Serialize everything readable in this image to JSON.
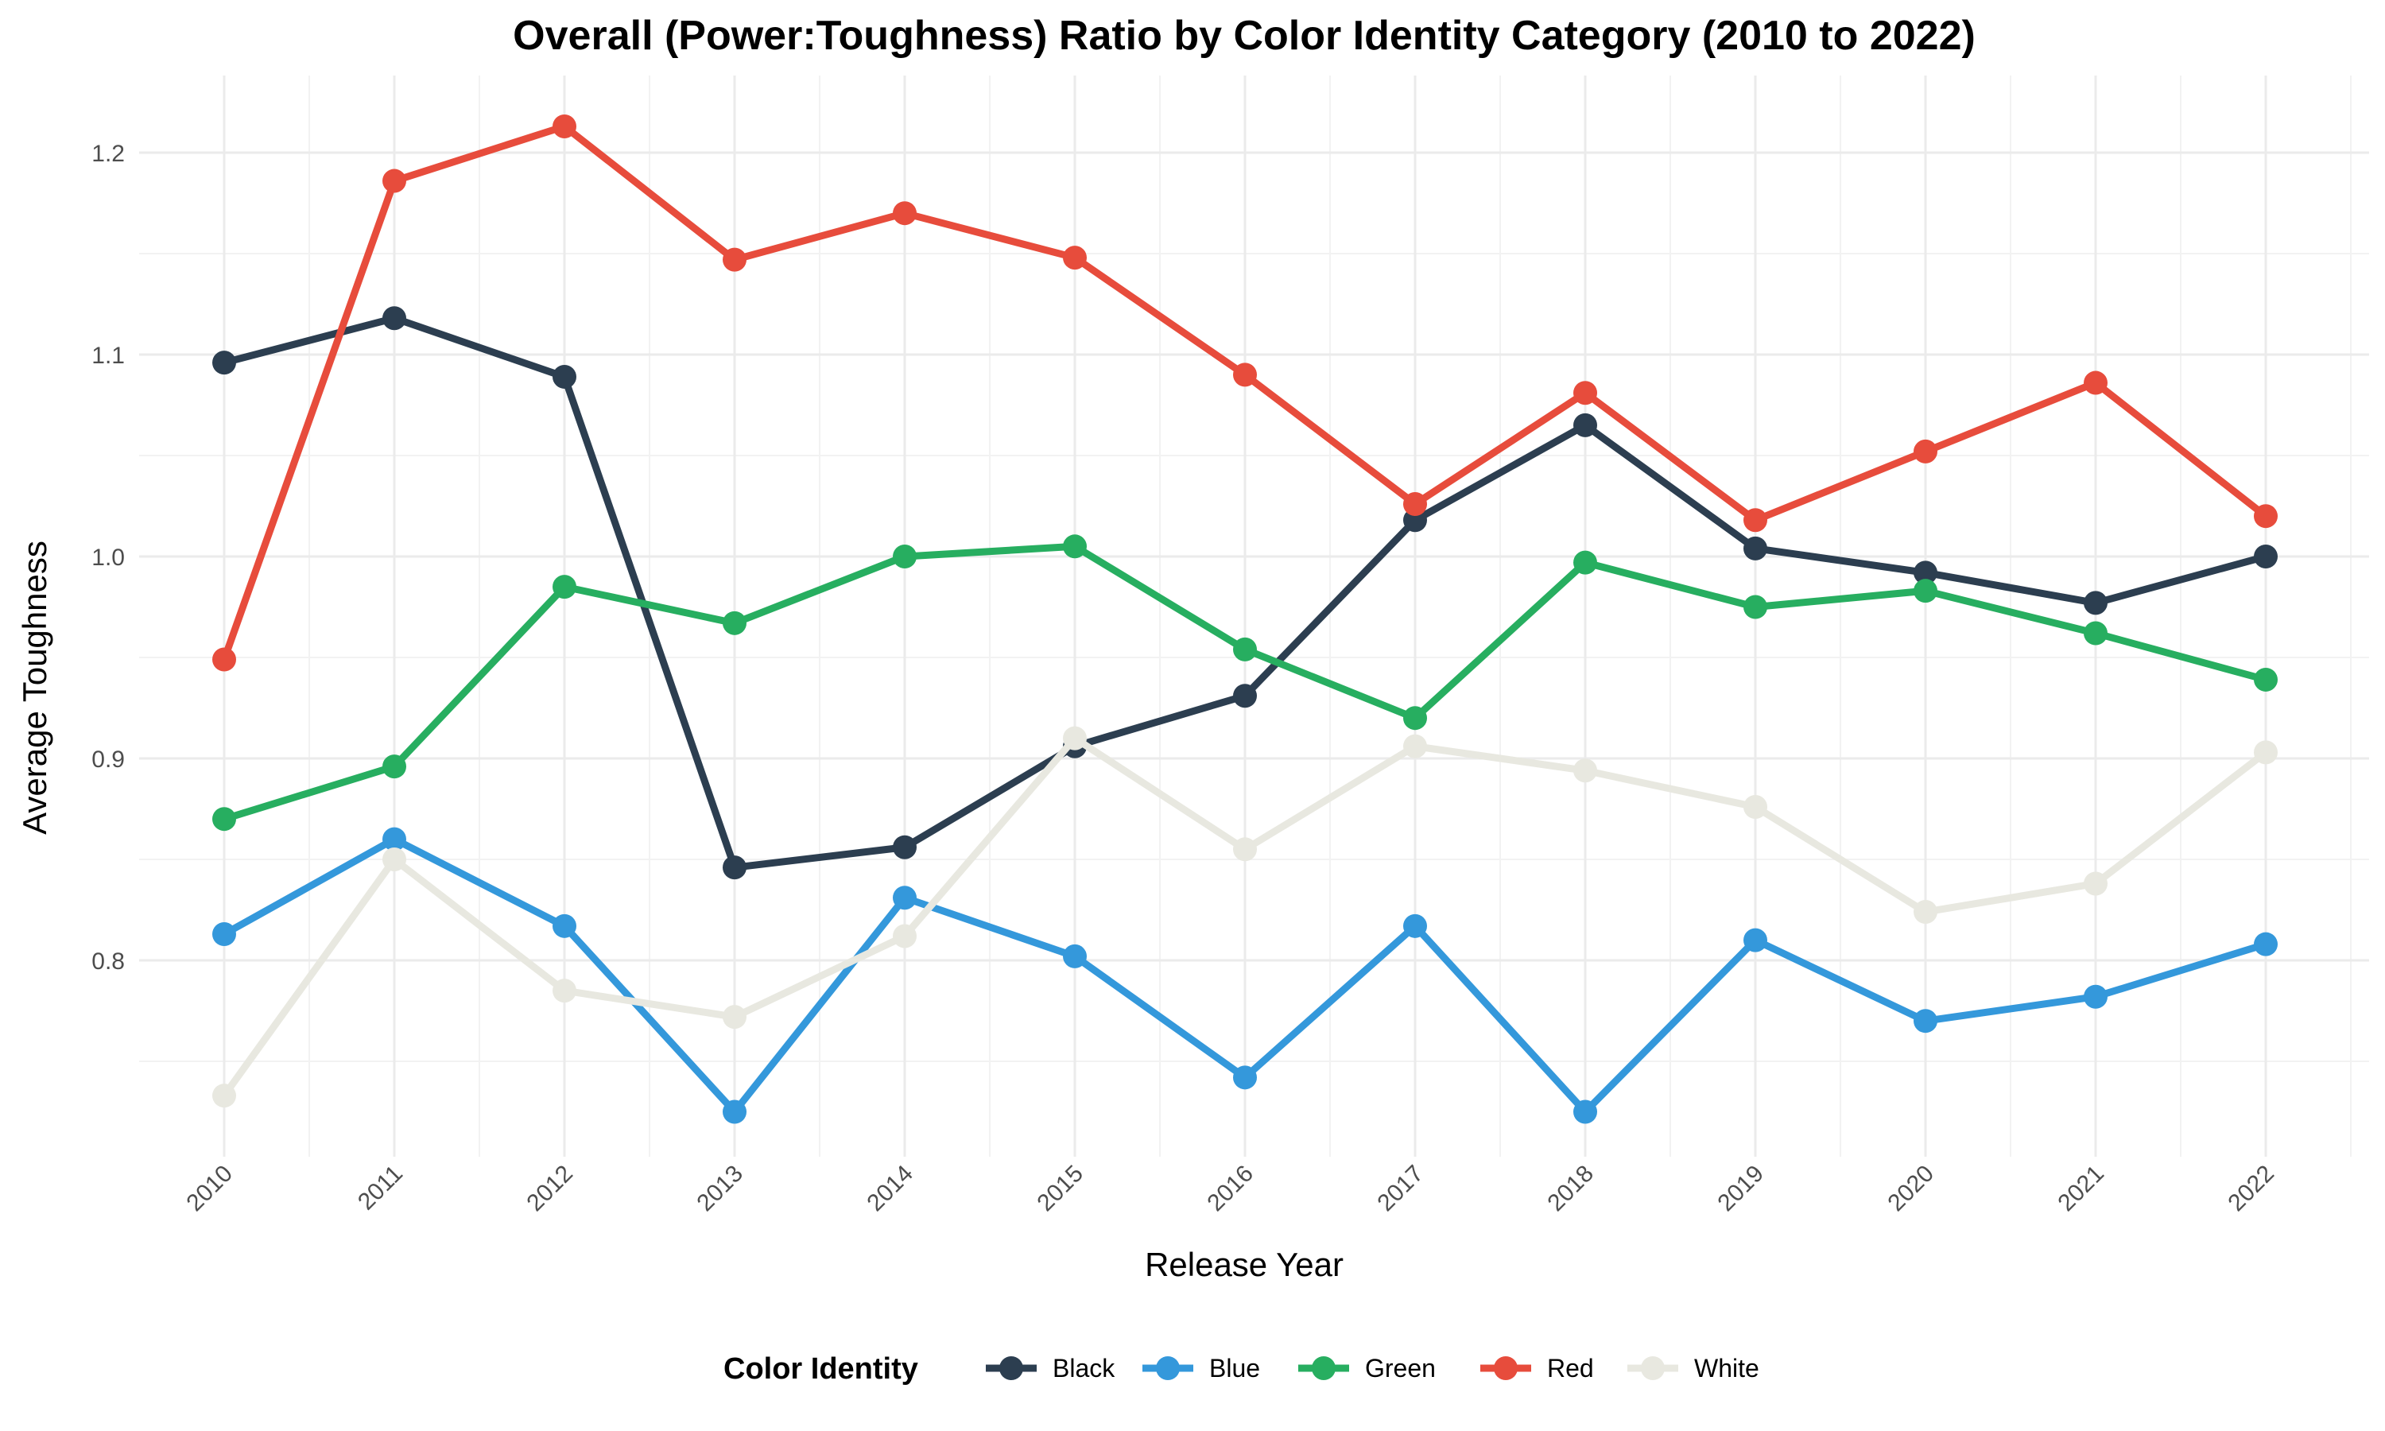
{
  "chart_data": {
    "type": "line",
    "title": "Overall (Power:Toughness) Ratio by Color Identity Category (2010 to 2022)",
    "xlabel": "Release Year",
    "ylabel": "Average Toughness",
    "x": [
      "2010",
      "2011",
      "2012",
      "2013",
      "2014",
      "2015",
      "2016",
      "2017",
      "2018",
      "2019",
      "2020",
      "2021",
      "2022"
    ],
    "ylim": [
      0.7,
      1.225
    ],
    "yticks": [
      "0.8",
      "0.9",
      "1.0",
      "1.1",
      "1.2"
    ],
    "grid": true,
    "legend": {
      "title": "Color Identity",
      "position": "bottom"
    },
    "series": [
      {
        "name": "Black",
        "color": "#2c3e50",
        "values": [
          1.096,
          1.118,
          1.089,
          0.846,
          0.856,
          0.906,
          0.931,
          1.018,
          1.065,
          1.004,
          0.992,
          0.977,
          1.0
        ]
      },
      {
        "name": "Blue",
        "color": "#3498db",
        "values": [
          0.813,
          0.86,
          0.817,
          0.725,
          0.831,
          0.802,
          0.742,
          0.817,
          0.725,
          0.81,
          0.77,
          0.782,
          0.808
        ]
      },
      {
        "name": "Green",
        "color": "#27ae60",
        "values": [
          0.87,
          0.896,
          0.985,
          0.967,
          1.0,
          1.005,
          0.954,
          0.92,
          0.997,
          0.975,
          0.983,
          0.962,
          0.939
        ]
      },
      {
        "name": "Red",
        "color": "#e74c3c",
        "values": [
          0.949,
          1.186,
          1.213,
          1.147,
          1.17,
          1.148,
          1.09,
          1.026,
          1.081,
          1.018,
          1.052,
          1.086,
          1.02
        ]
      },
      {
        "name": "White",
        "color": "#e8e8e0",
        "values": [
          0.733,
          0.85,
          0.785,
          0.772,
          0.812,
          0.91,
          0.855,
          0.906,
          0.894,
          0.876,
          0.824,
          0.838,
          0.903
        ]
      }
    ]
  }
}
